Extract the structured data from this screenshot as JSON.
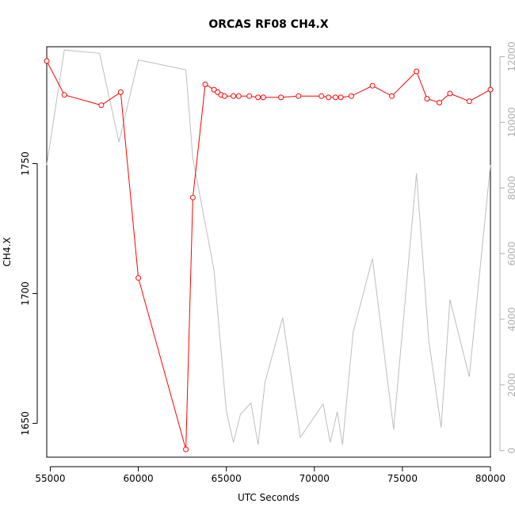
{
  "chart_data": {
    "type": "line",
    "title": "ORCAS RF08 CH4.X",
    "xlabel": "UTC Seconds",
    "ylabel": "CH4.X",
    "xlim": [
      54800,
      80000
    ],
    "ylim": [
      1637,
      1795
    ],
    "y2lim": [
      -200,
      12300
    ],
    "x_ticks": [
      55000,
      60000,
      65000,
      70000,
      75000,
      80000
    ],
    "y_ticks": [
      1650,
      1700,
      1750
    ],
    "y2_ticks": [
      0,
      2000,
      4000,
      6000,
      8000,
      10000,
      12000
    ],
    "grid": false,
    "colors": {
      "primary": "#ff0000",
      "secondary": "#bebebe",
      "axis": "#000000",
      "secondary_axis": "#b0b0b0"
    },
    "series": [
      {
        "axis": "left",
        "color": "#ff0000",
        "marker": "open-circle",
        "x": [
          54800,
          55800,
          57900,
          59000,
          60000,
          62700,
          63100,
          63800,
          64300,
          64500,
          64700,
          64900,
          65400,
          65700,
          66300,
          66800,
          67100,
          68100,
          69100,
          70400,
          70800,
          71200,
          71500,
          72100,
          73300,
          74400,
          75800,
          76400,
          77100,
          77700,
          78800,
          80000
        ],
        "y": [
          1789.5,
          1776.5,
          1772.5,
          1777.5,
          1706,
          1640,
          1737,
          1780.5,
          1778.5,
          1777.5,
          1776.5,
          1776,
          1776,
          1776,
          1776,
          1775.5,
          1775.5,
          1775.5,
          1776,
          1776,
          1775.5,
          1775.5,
          1775.5,
          1776,
          1780,
          1776,
          1785.5,
          1775,
          1773.5,
          1777,
          1774,
          1778.5
        ]
      },
      {
        "axis": "right",
        "color": "#bebebe",
        "marker": "none",
        "x": [
          54800,
          55800,
          57800,
          58900,
          60000,
          62700,
          63100,
          64300,
          65000,
          65400,
          65800,
          66400,
          66800,
          67200,
          68200,
          69200,
          70500,
          70900,
          71300,
          71600,
          72200,
          73300,
          74500,
          75800,
          76500,
          77200,
          77700,
          78800,
          80000
        ],
        "y": [
          8700,
          12200,
          12100,
          9400,
          11900,
          11600,
          8900,
          5500,
          1200,
          250,
          1100,
          1450,
          180,
          2100,
          4050,
          400,
          1420,
          250,
          1180,
          180,
          3600,
          5850,
          650,
          8450,
          3350,
          700,
          4600,
          2250,
          8700
        ]
      }
    ]
  }
}
